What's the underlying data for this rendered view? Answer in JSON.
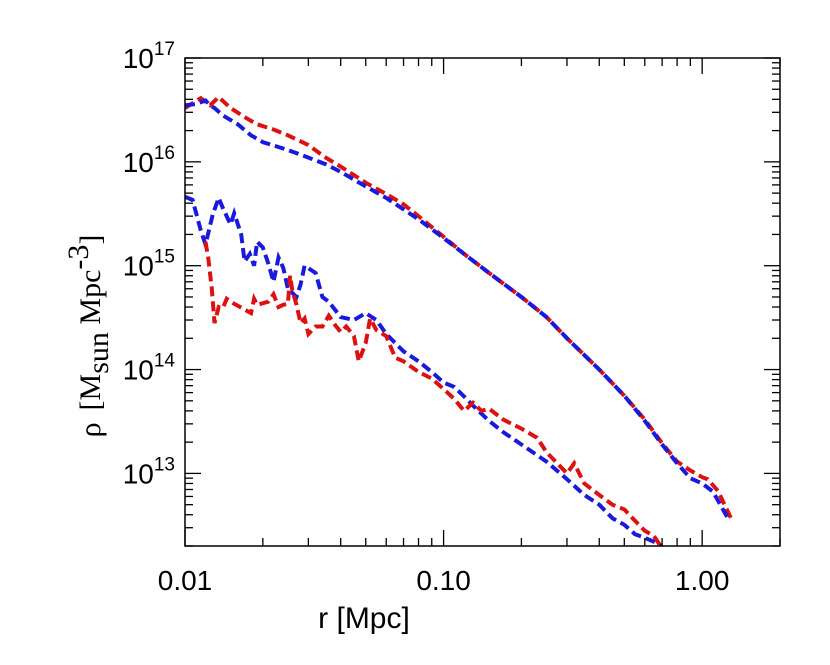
{
  "chart_data": {
    "type": "line",
    "xlabel": "r [Mpc]",
    "ylabel": {
      "rho": "ρ",
      "open": "[M",
      "sub": "sun",
      "mid": " Mpc",
      "sup": "-3",
      "close": "]"
    },
    "x_scale": "log",
    "y_scale": "log",
    "xlim": [
      0.01,
      2.0
    ],
    "ylim": [
      2000000000000.0,
      1e+17
    ],
    "grid": false,
    "x_ticks": [
      {
        "value": 0.01,
        "label": "0.01"
      },
      {
        "value": 0.1,
        "label": "0.10"
      },
      {
        "value": 1.0,
        "label": "1.00"
      }
    ],
    "y_ticks": [
      {
        "value": 10000000000000.0,
        "base": "10",
        "exp": "13"
      },
      {
        "value": 100000000000000.0,
        "base": "10",
        "exp": "14"
      },
      {
        "value": 1000000000000000.0,
        "base": "10",
        "exp": "15"
      },
      {
        "value": 1e+16,
        "base": "10",
        "exp": "16"
      },
      {
        "value": 1e+17,
        "base": "10",
        "exp": "17"
      }
    ],
    "series": [
      {
        "color": "#dd1111",
        "dash": "10,5",
        "points": [
          [
            0.01,
            3.3e+16
          ],
          [
            0.0115,
            4.1e+16
          ],
          [
            0.0125,
            3.5e+16
          ],
          [
            0.0135,
            4.2e+16
          ],
          [
            0.015,
            3.3e+16
          ],
          [
            0.017,
            2.7e+16
          ],
          [
            0.019,
            2.3e+16
          ],
          [
            0.022,
            2.05e+16
          ],
          [
            0.025,
            1.8e+16
          ],
          [
            0.03,
            1.45e+16
          ],
          [
            0.035,
            1.1e+16
          ],
          [
            0.04,
            9000000000000000.0
          ],
          [
            0.05,
            6300000000000000.0
          ],
          [
            0.06,
            4900000000000000.0
          ],
          [
            0.07,
            3900000000000000.0
          ],
          [
            0.08,
            3000000000000000.0
          ],
          [
            0.1,
            1900000000000000.0
          ],
          [
            0.12,
            1300000000000000.0
          ],
          [
            0.15,
            850000000000000.0
          ],
          [
            0.2,
            500000000000000.0
          ],
          [
            0.25,
            320000000000000.0
          ],
          [
            0.3,
            200000000000000.0
          ],
          [
            0.4,
            100000000000000.0
          ],
          [
            0.5,
            56000000000000.0
          ],
          [
            0.6,
            33000000000000.0
          ],
          [
            0.7,
            19500000000000.0
          ],
          [
            0.8,
            13000000000000.0
          ],
          [
            0.9,
            10700000000000.0
          ],
          [
            1.0,
            9200000000000.0
          ],
          [
            1.05,
            8800000000000.0
          ],
          [
            1.15,
            6800000000000.0
          ],
          [
            1.3,
            3600000000000.0
          ]
        ]
      },
      {
        "color": "#1a1adc",
        "dash": "10,5",
        "points": [
          [
            0.01,
            3.5e+16
          ],
          [
            0.011,
            3.6e+16
          ],
          [
            0.012,
            3.9e+16
          ],
          [
            0.0125,
            3.5e+16
          ],
          [
            0.013,
            3.3e+16
          ],
          [
            0.014,
            2.8e+16
          ],
          [
            0.016,
            2.3e+16
          ],
          [
            0.018,
            1.8e+16
          ],
          [
            0.02,
            1.55e+16
          ],
          [
            0.025,
            1.3e+16
          ],
          [
            0.03,
            1.1e+16
          ],
          [
            0.035,
            9500000000000000.0
          ],
          [
            0.04,
            8000000000000000.0
          ],
          [
            0.05,
            5800000000000000.0
          ],
          [
            0.06,
            4500000000000000.0
          ],
          [
            0.08,
            2800000000000000.0
          ],
          [
            0.1,
            1850000000000000.0
          ],
          [
            0.12,
            1300000000000000.0
          ],
          [
            0.15,
            850000000000000.0
          ],
          [
            0.2,
            500000000000000.0
          ],
          [
            0.25,
            320000000000000.0
          ],
          [
            0.3,
            200000000000000.0
          ],
          [
            0.4,
            100000000000000.0
          ],
          [
            0.5,
            56000000000000.0
          ],
          [
            0.6,
            32000000000000.0
          ],
          [
            0.7,
            19000000000000.0
          ],
          [
            0.8,
            12500000000000.0
          ],
          [
            0.9,
            9000000000000.0
          ],
          [
            1.0,
            8000000000000.0
          ],
          [
            1.1,
            6700000000000.0
          ],
          [
            1.25,
            3800000000000.0
          ]
        ]
      },
      {
        "color": "#1a1adc",
        "dash": "10,5",
        "points": [
          [
            0.01,
            4600000000000000.0
          ],
          [
            0.0107,
            4300000000000000.0
          ],
          [
            0.0115,
            2200000000000000.0
          ],
          [
            0.012,
            1600000000000000.0
          ],
          [
            0.0128,
            3100000000000000.0
          ],
          [
            0.0135,
            4500000000000000.0
          ],
          [
            0.014,
            3600000000000000.0
          ],
          [
            0.015,
            2500000000000000.0
          ],
          [
            0.0155,
            3200000000000000.0
          ],
          [
            0.0165,
            2000000000000000.0
          ],
          [
            0.017,
            1100000000000000.0
          ],
          [
            0.0178,
            1300000000000000.0
          ],
          [
            0.0185,
            1000000000000000.0
          ],
          [
            0.019,
            1700000000000000.0
          ],
          [
            0.02,
            1500000000000000.0
          ],
          [
            0.021,
            1050000000000000.0
          ],
          [
            0.022,
            700000000000000.0
          ],
          [
            0.023,
            1200000000000000.0
          ],
          [
            0.024,
            950000000000000.0
          ],
          [
            0.025,
            600000000000000.0
          ],
          [
            0.027,
            500000000000000.0
          ],
          [
            0.028,
            660000000000000.0
          ],
          [
            0.029,
            1000000000000000.0
          ],
          [
            0.032,
            850000000000000.0
          ],
          [
            0.034,
            500000000000000.0
          ],
          [
            0.036,
            450000000000000.0
          ],
          [
            0.04,
            320000000000000.0
          ],
          [
            0.045,
            300000000000000.0
          ],
          [
            0.05,
            350000000000000.0
          ],
          [
            0.055,
            300000000000000.0
          ],
          [
            0.06,
            220000000000000.0
          ],
          [
            0.065,
            180000000000000.0
          ],
          [
            0.07,
            150000000000000.0
          ],
          [
            0.08,
            120000000000000.0
          ],
          [
            0.09,
            95000000000000.0
          ],
          [
            0.1,
            75000000000000.0
          ],
          [
            0.11,
            68000000000000.0
          ],
          [
            0.12,
            55000000000000.0
          ],
          [
            0.13,
            45000000000000.0
          ],
          [
            0.15,
            32000000000000.0
          ],
          [
            0.17,
            25000000000000.0
          ],
          [
            0.2,
            19000000000000.0
          ],
          [
            0.25,
            13000000000000.0
          ],
          [
            0.3,
            8800000000000.0
          ],
          [
            0.35,
            6200000000000.0
          ],
          [
            0.4,
            5000000000000.0
          ],
          [
            0.45,
            3700000000000.0
          ],
          [
            0.5,
            3200000000000.0
          ],
          [
            0.55,
            2600000000000.0
          ],
          [
            0.6,
            2400000000000.0
          ],
          [
            0.65,
            2200000000000.0
          ],
          [
            0.7,
            2000000000000.0
          ]
        ]
      },
      {
        "color": "#dd1111",
        "dash": "10,5",
        "points": [
          [
            0.012,
            1700000000000000.0
          ],
          [
            0.0123,
            1200000000000000.0
          ],
          [
            0.0127,
            600000000000000.0
          ],
          [
            0.013,
            280000000000000.0
          ],
          [
            0.0135,
            400000000000000.0
          ],
          [
            0.014,
            390000000000000.0
          ],
          [
            0.0145,
            480000000000000.0
          ],
          [
            0.015,
            450000000000000.0
          ],
          [
            0.018,
            350000000000000.0
          ],
          [
            0.0185,
            480000000000000.0
          ],
          [
            0.019,
            420000000000000.0
          ],
          [
            0.021,
            450000000000000.0
          ],
          [
            0.022,
            530000000000000.0
          ],
          [
            0.023,
            400000000000000.0
          ],
          [
            0.024,
            420000000000000.0
          ],
          [
            0.025,
            430000000000000.0
          ],
          [
            0.0255,
            800000000000000.0
          ],
          [
            0.026,
            580000000000000.0
          ],
          [
            0.027,
            420000000000000.0
          ],
          [
            0.028,
            280000000000000.0
          ],
          [
            0.029,
            310000000000000.0
          ],
          [
            0.03,
            220000000000000.0
          ],
          [
            0.032,
            260000000000000.0
          ],
          [
            0.034,
            260000000000000.0
          ],
          [
            0.036,
            330000000000000.0
          ],
          [
            0.038,
            270000000000000.0
          ],
          [
            0.04,
            230000000000000.0
          ],
          [
            0.042,
            260000000000000.0
          ],
          [
            0.045,
            210000000000000.0
          ],
          [
            0.047,
            120000000000000.0
          ],
          [
            0.05,
            180000000000000.0
          ],
          [
            0.052,
            310000000000000.0
          ],
          [
            0.055,
            240000000000000.0
          ],
          [
            0.06,
            210000000000000.0
          ],
          [
            0.065,
            130000000000000.0
          ],
          [
            0.07,
            120000000000000.0
          ],
          [
            0.08,
            95000000000000.0
          ],
          [
            0.09,
            82000000000000.0
          ],
          [
            0.1,
            65000000000000.0
          ],
          [
            0.11,
            52000000000000.0
          ],
          [
            0.12,
            40000000000000.0
          ],
          [
            0.13,
            48000000000000.0
          ],
          [
            0.14,
            40000000000000.0
          ],
          [
            0.15,
            42000000000000.0
          ],
          [
            0.17,
            33000000000000.0
          ],
          [
            0.2,
            27000000000000.0
          ],
          [
            0.23,
            22000000000000.0
          ],
          [
            0.25,
            16000000000000.0
          ],
          [
            0.3,
            10000000000000.0
          ],
          [
            0.32,
            12500000000000.0
          ],
          [
            0.35,
            8000000000000.0
          ],
          [
            0.4,
            6200000000000.0
          ],
          [
            0.45,
            5000000000000.0
          ],
          [
            0.5,
            4500000000000.0
          ],
          [
            0.55,
            3500000000000.0
          ],
          [
            0.6,
            2800000000000.0
          ],
          [
            0.65,
            2500000000000.0
          ],
          [
            0.7,
            1900000000000.0
          ]
        ]
      }
    ]
  }
}
